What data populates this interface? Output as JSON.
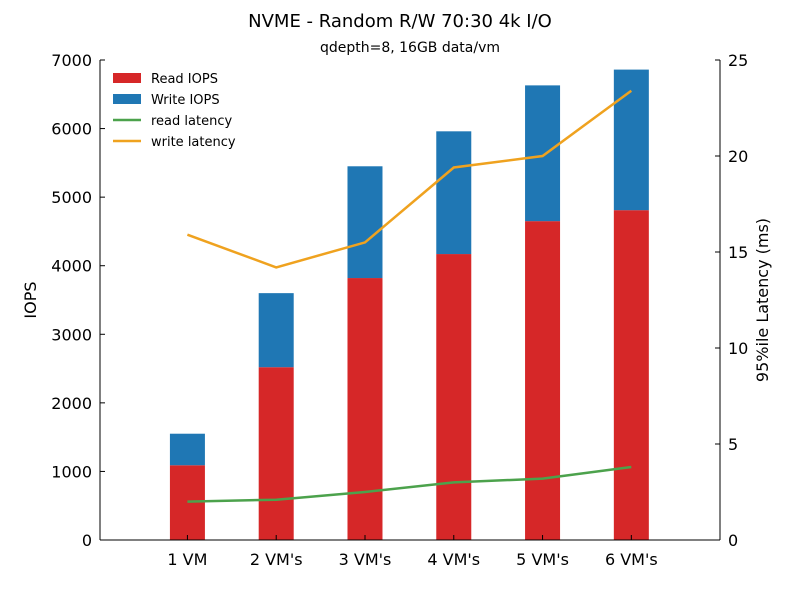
{
  "chart_data": {
    "type": "bar",
    "title": "NVME - Random R/W 70:30 4k I/O",
    "subtitle": "qdepth=8, 16GB data/vm",
    "xlabel": "",
    "ylabel": "IOPS",
    "y2label": "95%ile Latency (ms)",
    "categories": [
      "1 VM",
      "2 VM's",
      "3 VM's",
      "4 VM's",
      "5 VM's",
      "6 VM's"
    ],
    "ylim": [
      0,
      7000
    ],
    "y2lim": [
      0,
      25
    ],
    "yticks": [
      0,
      1000,
      2000,
      3000,
      4000,
      5000,
      6000,
      7000
    ],
    "y2ticks": [
      0,
      5,
      10,
      15,
      20,
      25
    ],
    "stacked": true,
    "legend_position": "top-left",
    "grid": false,
    "series": [
      {
        "name": "Read IOPS",
        "kind": "bar",
        "axis": "left",
        "color": "#d62728",
        "values": [
          1090,
          2520,
          3820,
          4170,
          4650,
          4810
        ]
      },
      {
        "name": "Write IOPS",
        "kind": "bar",
        "axis": "left",
        "color": "#1f77b4",
        "values": [
          460,
          1080,
          1630,
          1790,
          1980,
          2050
        ]
      },
      {
        "name": "read latency",
        "kind": "line",
        "axis": "right",
        "color": "#4ca24c",
        "values": [
          2.0,
          2.1,
          2.5,
          3.0,
          3.2,
          3.8
        ]
      },
      {
        "name": "write latency",
        "kind": "line",
        "axis": "right",
        "color": "#efa21f",
        "values": [
          15.9,
          14.2,
          15.5,
          19.4,
          20.0,
          23.4
        ]
      }
    ]
  }
}
